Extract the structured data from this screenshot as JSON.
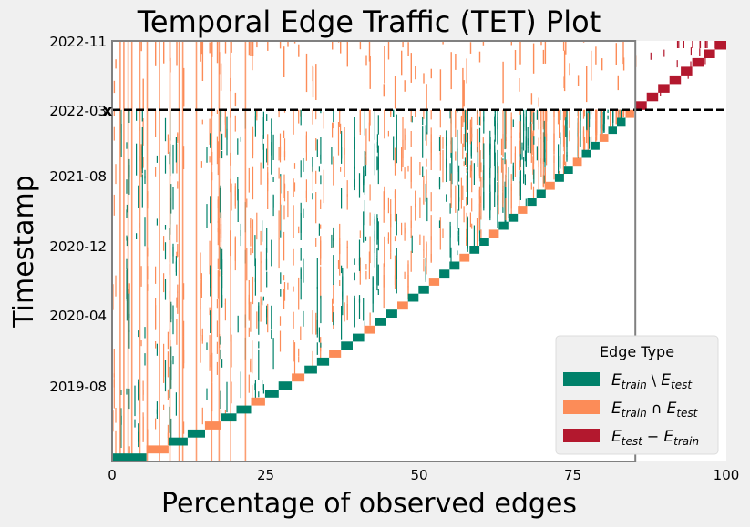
{
  "chart_data": {
    "type": "heatmap",
    "title": "Temporal Edge Traffic (TET) Plot",
    "xlabel": "Percentage of observed edges",
    "ylabel": "Timestamp",
    "xlim": [
      0,
      100
    ],
    "x_ticks": [
      "0",
      "25",
      "50",
      "75",
      "100"
    ],
    "y_ticks": [
      "2019-08",
      "2020-04",
      "2020-12",
      "2021-08",
      "2022-03",
      "2022-11"
    ],
    "y_tick_values": [
      0.18,
      0.348,
      0.513,
      0.68,
      0.836,
      1.0
    ],
    "split_timestamp_label": "2022-03",
    "split_marker": "x",
    "split_y_fraction": 0.836,
    "train_edge_boundary_percent": 85.2,
    "grid": false,
    "legend": {
      "title": "Edge Type",
      "placement": "lower-right",
      "entries": [
        {
          "label": "E_train \\ E_test",
          "main": "E",
          "sub1": "train",
          "op": " \\ ",
          "sub2": "test",
          "color": "#00816a"
        },
        {
          "label": "E_train ∩ E_test",
          "main": "E",
          "sub1": "train",
          "op": " ∩ ",
          "sub2": "test",
          "color": "#fc8c58"
        },
        {
          "label": "E_test − E_train",
          "main": "E",
          "sub1": "test",
          "op": " − ",
          "sub2": "train",
          "color": "#b3182e"
        }
      ]
    },
    "colors": {
      "train_only": "#00816a",
      "train_and_test": "#fc8c58",
      "test_only": "#b3182e",
      "background": "#f0f0f0",
      "frame": "#808080"
    },
    "series": [
      {
        "name": "E_train \\ E_test",
        "description_points_percent_vs_time": {
          "x": [
            0,
            5,
            10,
            20,
            30,
            40,
            50,
            60,
            70,
            80,
            85
          ],
          "y_fraction": [
            0.0,
            0.03,
            0.06,
            0.13,
            0.2,
            0.29,
            0.39,
            0.51,
            0.64,
            0.77,
            0.836
          ]
        }
      },
      {
        "name": "E_test − E_train",
        "description_points_percent_vs_time": {
          "x": [
            85.2,
            90,
            95,
            100
          ],
          "y_fraction": [
            0.836,
            0.9,
            0.95,
            1.0
          ]
        }
      }
    ]
  }
}
